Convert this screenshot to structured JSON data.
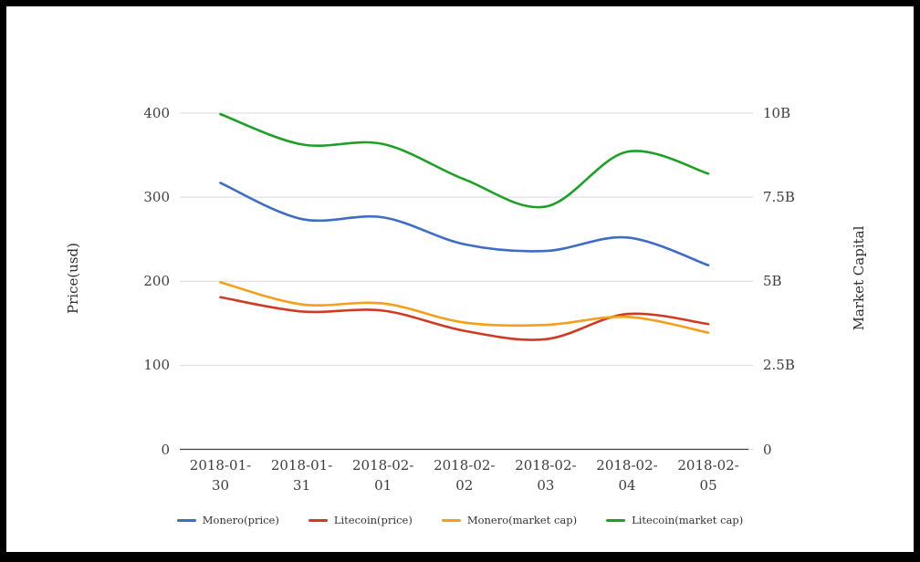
{
  "chart": {
    "left_axis": {
      "title": "Price(usd)",
      "ticks": [
        "0",
        "100",
        "200",
        "300",
        "400"
      ],
      "min": 0,
      "max": 400
    },
    "right_axis": {
      "title": "Market Capital",
      "ticks": [
        "0",
        "2.5B",
        "5B",
        "7.5B",
        "10B"
      ],
      "min": 0,
      "max": 10
    },
    "colors": {
      "grid": "#d9d9d9",
      "axis_line": "#424242",
      "blue": "#3e6dc6",
      "red": "#cf3b22",
      "orange": "#f79e1b",
      "green": "#1da125"
    }
  },
  "chart_data": {
    "type": "line",
    "smooth": true,
    "grid": true,
    "legend_position": "bottom",
    "categories": [
      "2018-01-30",
      "2018-01-31",
      "2018-02-01",
      "2018-02-02",
      "2018-02-03",
      "2018-02-04",
      "2018-02-05"
    ],
    "xlabel": "",
    "ylabel_left": "Price(usd)",
    "ylabel_right": "Market Capital",
    "ylim_left": [
      0,
      400
    ],
    "ylim_right": [
      0,
      10
    ],
    "series": [
      {
        "name": "Monero(price)",
        "axis": "left",
        "unit": "usd",
        "color": "#3e6dc6",
        "values": [
          317,
          274,
          276,
          244,
          236,
          252,
          219
        ]
      },
      {
        "name": "Litecoin(price)",
        "axis": "left",
        "unit": "usd",
        "color": "#cf3b22",
        "values": [
          181,
          164,
          165,
          141,
          131,
          161,
          149
        ]
      },
      {
        "name": "Monero(market cap)",
        "axis": "right",
        "unit": "B",
        "color": "#f79e1b",
        "values": [
          4.97,
          4.31,
          4.34,
          3.77,
          3.7,
          3.94,
          3.47
        ]
      },
      {
        "name": "Litecoin(market cap)",
        "axis": "right",
        "unit": "B",
        "color": "#1da125",
        "values": [
          9.97,
          9.07,
          9.08,
          8.03,
          7.22,
          8.85,
          8.2
        ]
      }
    ]
  }
}
